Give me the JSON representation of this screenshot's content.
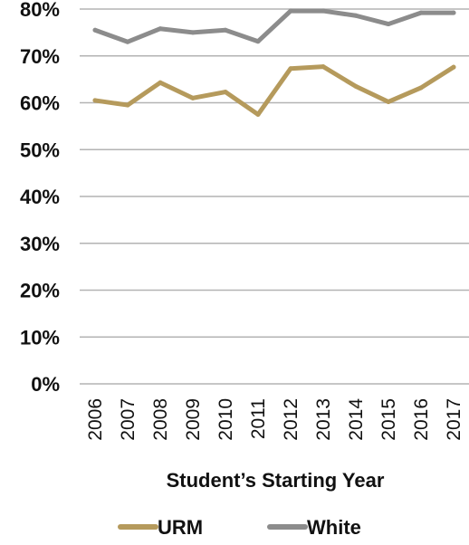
{
  "chart_data": {
    "type": "line",
    "x": [
      "2006",
      "2007",
      "2008",
      "2009",
      "2010",
      "2011",
      "2012",
      "2013",
      "2014",
      "2015",
      "2016",
      "2017"
    ],
    "series": [
      {
        "name": "URM",
        "color": "#b59a5c",
        "values": [
          60.5,
          59.5,
          64.3,
          61.0,
          62.3,
          57.5,
          67.3,
          67.7,
          63.5,
          60.2,
          63.2,
          67.6
        ]
      },
      {
        "name": "White",
        "color": "#8c8c8c",
        "values": [
          75.5,
          73.0,
          75.8,
          75.0,
          75.5,
          73.1,
          79.6,
          79.6,
          78.6,
          76.8,
          79.2,
          79.2
        ]
      }
    ],
    "ylim": [
      0,
      80
    ],
    "yticks": [
      "0%",
      "10%",
      "20%",
      "30%",
      "40%",
      "50%",
      "60%",
      "70%",
      "80%"
    ],
    "xlabel": "Student’s Starting Year",
    "ylabel": "",
    "grid": true,
    "legend_position": "bottom"
  }
}
